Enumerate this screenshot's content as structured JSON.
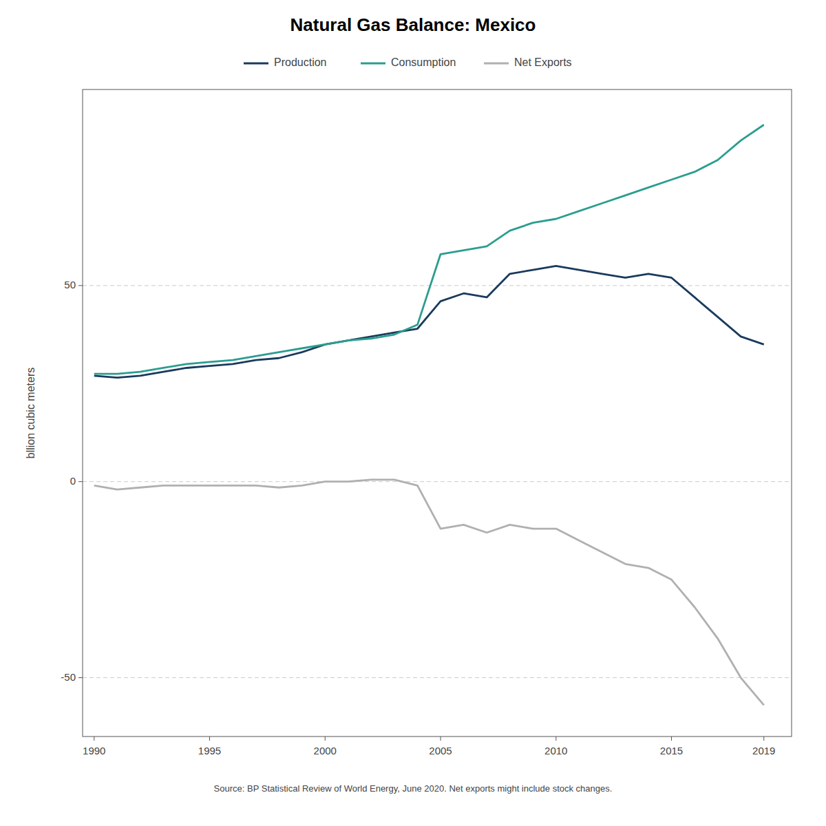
{
  "chart_data": {
    "type": "line",
    "title": "Natural Gas Balance: Mexico",
    "y_label": "bllion cubic meters",
    "source": "Source: BP Statistical Review of World Energy, June 2020. Net exports might include stock changes.",
    "x": [
      1990,
      1991,
      1992,
      1993,
      1994,
      1995,
      1996,
      1997,
      1998,
      1999,
      2000,
      2001,
      2002,
      2003,
      2004,
      2005,
      2006,
      2007,
      2008,
      2009,
      2010,
      2011,
      2012,
      2013,
      2014,
      2015,
      2016,
      2017,
      2018,
      2019
    ],
    "series": [
      {
        "name": "Production",
        "color": "#1a3a5c",
        "values": [
          27,
          26.5,
          27,
          28,
          29,
          29.5,
          30,
          31,
          31.5,
          33,
          35,
          36,
          37,
          38,
          39,
          46,
          48,
          47,
          53,
          54,
          55,
          54,
          53,
          52,
          53,
          52,
          47,
          42,
          37,
          35
        ]
      },
      {
        "name": "Consumption",
        "color": "#2a9d8f",
        "values": [
          27.5,
          27.5,
          28,
          29,
          30,
          30.5,
          31,
          32,
          33,
          34,
          35,
          36,
          36.5,
          37.5,
          40,
          58,
          59,
          60,
          64,
          66,
          67,
          69,
          71,
          73,
          75,
          77,
          79,
          82,
          87,
          91
        ]
      },
      {
        "name": "Net Exports",
        "color": "#b0b0b0",
        "values": [
          -1,
          -2,
          -1.5,
          -1,
          -1,
          -1,
          -1,
          -1,
          -1.5,
          -1,
          0,
          0,
          0.5,
          0.5,
          -1,
          -12,
          -11,
          -13,
          -11,
          -12,
          -12,
          -15,
          -18,
          -21,
          -22,
          -25,
          -32,
          -40,
          -50,
          -57
        ]
      }
    ],
    "xlim": [
      1989.5,
      2020.2
    ],
    "xticks": [
      1990,
      1995,
      2000,
      2005,
      2010,
      2015,
      2019
    ],
    "ylim": [
      -65,
      100
    ],
    "yticks": [
      -50,
      0,
      50
    ],
    "grid": true,
    "legend": "top"
  }
}
